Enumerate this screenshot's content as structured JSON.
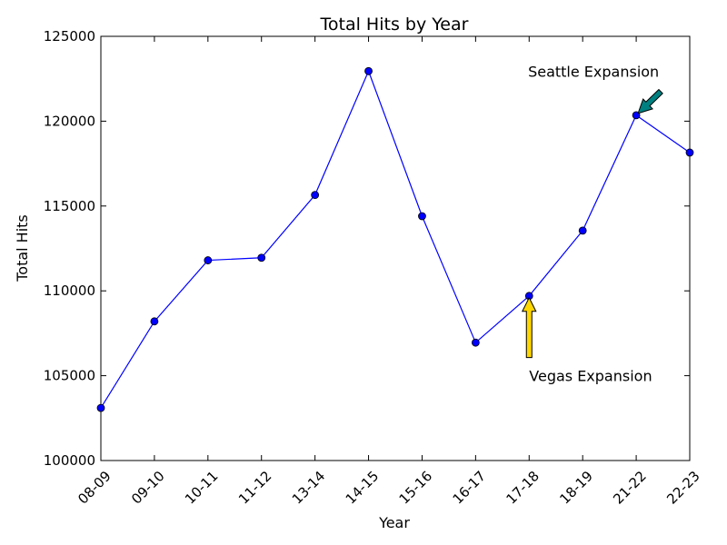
{
  "chart_data": {
    "type": "line",
    "title": "Total Hits by Year",
    "xlabel": "Year",
    "ylabel": "Total Hits",
    "ylim": [
      100000,
      125000
    ],
    "yticks": [
      100000,
      105000,
      110000,
      115000,
      120000,
      125000
    ],
    "categories": [
      "08-09",
      "09-10",
      "10-11",
      "11-12",
      "13-14",
      "14-15",
      "15-16",
      "16-17",
      "17-18",
      "18-19",
      "21-22",
      "22-23"
    ],
    "series": [
      {
        "values": [
          103100,
          108200,
          111800,
          111950,
          115650,
          122950,
          114400,
          106950,
          109700,
          113550,
          120350,
          118150
        ]
      }
    ],
    "grid": false,
    "colors": {
      "line": "#0000ff",
      "marker": "#0000ff"
    },
    "annotations": [
      {
        "text": "Vegas Expansion",
        "target_category": "17-18",
        "target_value": 109700,
        "text_value": 105000,
        "arrow_color": "#ffd700"
      },
      {
        "text": "Seattle Expansion",
        "target_category": "21-22",
        "target_value": 120350,
        "text_value": 122500,
        "arrow_color": "#008080"
      }
    ]
  }
}
